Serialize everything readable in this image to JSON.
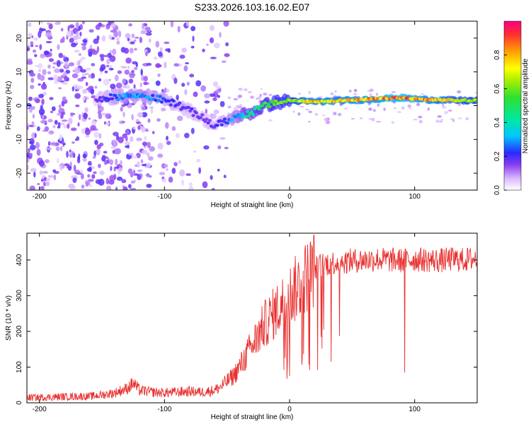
{
  "title": "S233.2026.103.16.02.E07",
  "colors": {
    "snr_line": "#e8302f",
    "speck_purple": "#6a1fe0",
    "frame": "#000000",
    "background": "#ffffff"
  },
  "chart_data": [
    {
      "type": "heatmap",
      "name": "spectrogram",
      "xlabel": "Height of straight line (km)",
      "ylabel": "Frequency (Hz)",
      "xlim": [
        -210,
        150
      ],
      "ylim": [
        -25,
        25
      ],
      "xticks": [
        -200,
        -100,
        0,
        100
      ],
      "xtick_labels": [
        "-200",
        "-100",
        "0",
        "100"
      ],
      "yticks": [
        -20,
        -10,
        0,
        10,
        20
      ],
      "ytick_labels": [
        "-20",
        "-10",
        "0",
        "10",
        "20"
      ],
      "colorbar": {
        "label": "Normalized spectral amplitude",
        "range": [
          0,
          1
        ],
        "ticks": [
          0,
          0.2,
          0.4,
          0.6,
          0.8
        ],
        "tick_labels": [
          "0.0",
          "0.2",
          "0.4",
          "0.6",
          "0.8"
        ]
      },
      "ridge": {
        "x": [
          -155,
          -140,
          -130,
          -120,
          -110,
          -100,
          -90,
          -80,
          -70,
          -60,
          -50,
          -45,
          -40,
          -35,
          -30,
          -25,
          -20,
          -15,
          -10,
          -5,
          0,
          10,
          20,
          30,
          40,
          50,
          60,
          70,
          80,
          90,
          100,
          110,
          120,
          130,
          140,
          150
        ],
        "frequency": [
          2,
          2.5,
          3,
          3,
          2.5,
          1.5,
          0.5,
          -1.5,
          -3.5,
          -6,
          -4.5,
          -3.5,
          -3,
          -2.5,
          -2,
          -1,
          0,
          0.5,
          1,
          1.2,
          1.5,
          1.3,
          1.2,
          1.3,
          1.5,
          1.6,
          1.8,
          2,
          2.2,
          2.3,
          2,
          1.8,
          1.7,
          1.6,
          1.5,
          1.5
        ],
        "amplitude": [
          0.15,
          0.25,
          0.3,
          0.3,
          0.28,
          0.25,
          0.22,
          0.2,
          0.18,
          0.2,
          0.25,
          0.3,
          0.35,
          0.45,
          0.45,
          0.5,
          0.55,
          0.55,
          0.6,
          0.6,
          0.6,
          0.75,
          0.8,
          0.8,
          0.78,
          0.8,
          0.82,
          0.85,
          0.9,
          0.88,
          0.85,
          0.82,
          0.78,
          0.72,
          0.68,
          0.65
        ]
      }
    },
    {
      "type": "line",
      "name": "snr",
      "xlabel": "Height of straight line (km)",
      "ylabel": "SNR (10 * v/v)",
      "xlim": [
        -210,
        150
      ],
      "ylim": [
        0,
        475
      ],
      "xticks": [
        -200,
        -100,
        0,
        100
      ],
      "xtick_labels": [
        "-200",
        "-100",
        "0",
        "100"
      ],
      "yticks": [
        0,
        100,
        200,
        300,
        400
      ],
      "ytick_labels": [
        "0",
        "100",
        "200",
        "300",
        "400"
      ],
      "series": [
        {
          "name": "SNR",
          "x": [
            -210,
            -200,
            -190,
            -180,
            -170,
            -160,
            -150,
            -140,
            -130,
            -125,
            -120,
            -110,
            -100,
            -90,
            -80,
            -70,
            -60,
            -55,
            -50,
            -45,
            -40,
            -35,
            -30,
            -25,
            -20,
            -15,
            -10,
            -5,
            0,
            5,
            10,
            15,
            20,
            25,
            30,
            40,
            50,
            60,
            70,
            80,
            90,
            100,
            110,
            120,
            130,
            140,
            150
          ],
          "values": [
            15,
            15,
            16,
            17,
            18,
            18,
            22,
            28,
            40,
            55,
            35,
            30,
            28,
            30,
            32,
            30,
            35,
            45,
            60,
            75,
            100,
            130,
            160,
            190,
            220,
            240,
            260,
            280,
            300,
            320,
            340,
            360,
            375,
            385,
            390,
            395,
            398,
            400,
            402,
            400,
            398,
            402,
            400,
            398,
            402,
            400,
            405
          ]
        }
      ]
    }
  ]
}
